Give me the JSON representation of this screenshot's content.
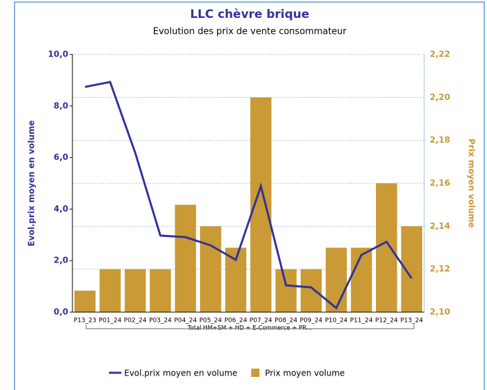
{
  "chart_data": {
    "type": "bar_line",
    "title": "LLC chèvre brique",
    "subtitle": "Evolution des prix de vente consommateur",
    "y_label": "Evol.prix moyen en volume",
    "y2_label": "Prix moyen volume",
    "group_label": "Total HM+SM + HD + E-Commerce + PR...",
    "categories": [
      "P13_23",
      "P01_24",
      "P02_24",
      "P03_24",
      "P04_24",
      "P05_24",
      "P06_24",
      "P07_24",
      "P08_24",
      "P09_24",
      "P10_24",
      "P11_24",
      "P12_24",
      "P13_24"
    ],
    "series": [
      {
        "name": "Evol.prix moyen en volume",
        "type": "line",
        "color": "#333399",
        "values": [
          8.74,
          8.93,
          6.18,
          2.97,
          2.91,
          2.59,
          2.03,
          4.89,
          1.04,
          0.96,
          0.16,
          2.22,
          2.73,
          1.31
        ]
      },
      {
        "name": "Prix moyen volume",
        "type": "bar",
        "axis": "y2",
        "color": "#C99A35",
        "values": [
          2.11,
          2.12,
          2.12,
          2.12,
          2.15,
          2.14,
          2.13,
          2.2,
          2.12,
          2.12,
          2.13,
          2.13,
          2.16,
          2.14
        ]
      }
    ],
    "ylim": [
      0,
      10
    ],
    "yticks": [
      {
        "value": 0,
        "label": "0,0"
      },
      {
        "value": 2,
        "label": "2,0"
      },
      {
        "value": 4,
        "label": "4,0"
      },
      {
        "value": 6,
        "label": "6,0"
      },
      {
        "value": 8,
        "label": "8,0"
      },
      {
        "value": 10,
        "label": "10,0"
      }
    ],
    "y2lim": [
      2.1,
      2.22
    ],
    "y2ticks": [
      {
        "value": 2.1,
        "label": "2,10"
      },
      {
        "value": 2.12,
        "label": "2,12"
      },
      {
        "value": 2.14,
        "label": "2,14"
      },
      {
        "value": 2.16,
        "label": "2,16"
      },
      {
        "value": 2.18,
        "label": "2,18"
      },
      {
        "value": 2.2,
        "label": "2,20"
      },
      {
        "value": 2.22,
        "label": "2,22"
      }
    ],
    "grid": true,
    "legend": "bottom"
  }
}
